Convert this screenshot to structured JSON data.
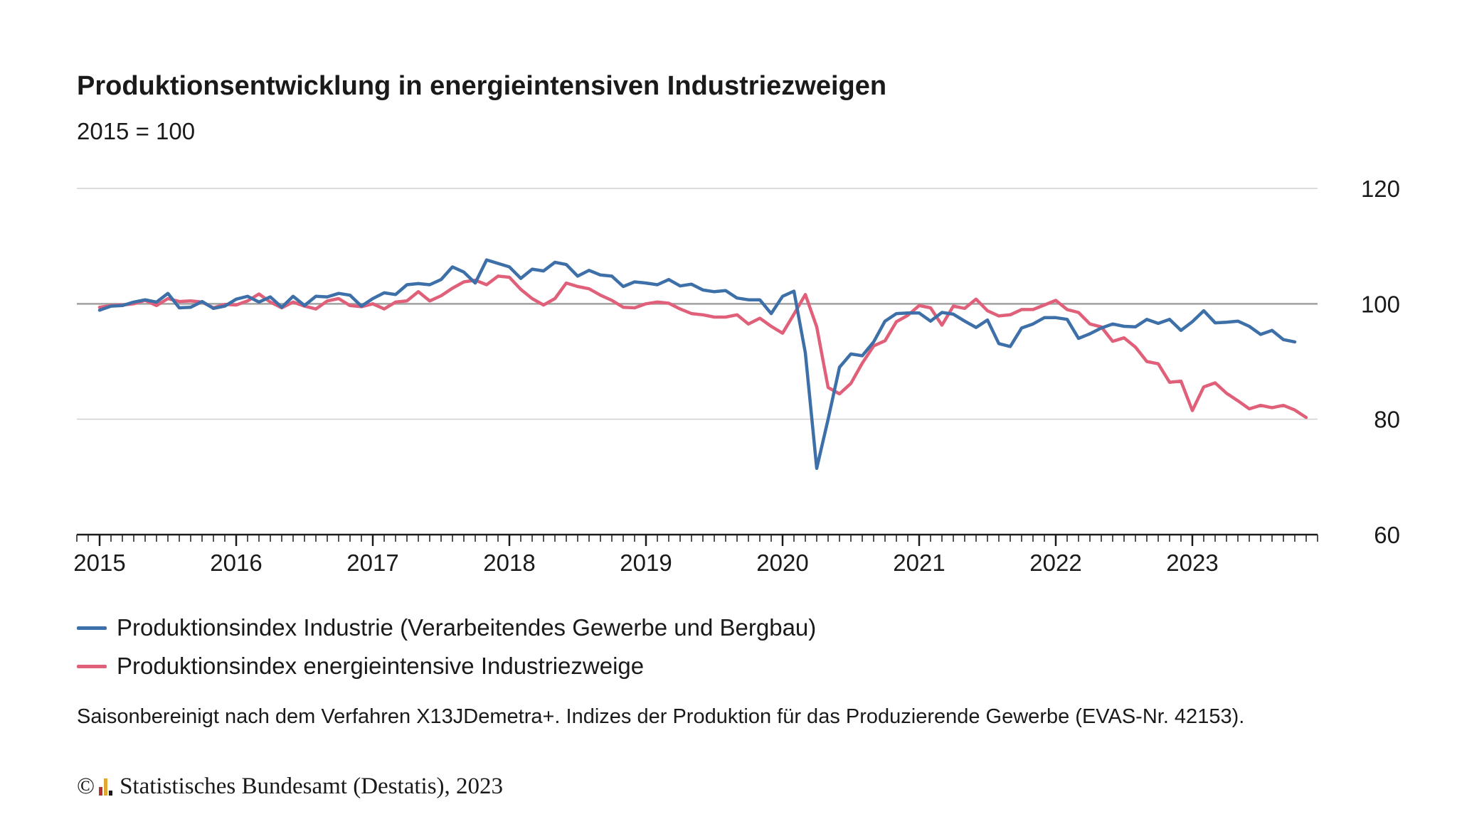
{
  "title": "Produktionsentwicklung in energieintensiven Industriezweigen",
  "subtitle": "2015 = 100",
  "legend": {
    "industry": "Produktionsindex Industrie (Verarbeitendes Gewerbe und Bergbau)",
    "energy": "Produktionsindex energieintensive Industriezweige"
  },
  "note": "Saisonbereinigt nach dem Verfahren X13JDemetra+. Indizes der Produktion für das Produzierende Gewerbe (EVAS-Nr. 42153).",
  "footer": {
    "copyright": "©",
    "source": "Statistisches Bundesamt (Destatis), 2023",
    "logo_colors": [
      "#b5312c",
      "#e0a830",
      "#1a1a1a"
    ]
  },
  "colors": {
    "industry": "#3d6fa8",
    "energy": "#e0607a",
    "grid": "#d0d0d0",
    "baseline": "#a0a0a0",
    "axis": "#1a1a1a"
  },
  "chart_data": {
    "type": "line",
    "title": "Produktionsentwicklung in energieintensiven Industriezweigen",
    "subtitle": "2015 = 100",
    "x_start": "2015-01",
    "frequency": "monthly",
    "x_tick_labels": [
      "2015",
      "2016",
      "2017",
      "2018",
      "2019",
      "2020",
      "2021",
      "2022",
      "2023"
    ],
    "y_tick_labels": [
      "120",
      "100",
      "80",
      "60"
    ],
    "ylim": [
      60,
      120
    ],
    "yticks": [
      60,
      80,
      100,
      120
    ],
    "y_axis_position": "right",
    "reference_line": 100,
    "series": [
      {
        "key": "industry",
        "name": "Produktionsindex Industrie (Verarbeitendes Gewerbe und Bergbau)",
        "values": [
          98.9,
          99.6,
          99.7,
          100.3,
          100.7,
          100.3,
          101.8,
          99.3,
          99.4,
          100.4,
          99.2,
          99.6,
          100.8,
          101.3,
          100.3,
          101.2,
          99.4,
          101.3,
          99.7,
          101.3,
          101.2,
          101.8,
          101.5,
          99.6,
          100.9,
          101.9,
          101.6,
          103.3,
          103.5,
          103.3,
          104.2,
          106.4,
          105.5,
          103.6,
          107.6,
          107.0,
          106.4,
          104.4,
          106.0,
          105.7,
          107.2,
          106.8,
          104.8,
          105.8,
          105.0,
          104.8,
          103.0,
          103.8,
          103.6,
          103.3,
          104.2,
          103.1,
          103.4,
          102.4,
          102.1,
          102.3,
          101.0,
          100.7,
          100.7,
          98.3,
          101.3,
          102.2,
          91.5,
          71.5,
          80.0,
          89.0,
          91.3,
          91.0,
          93.4,
          97.0,
          98.3,
          98.4,
          98.4,
          97.0,
          98.5,
          98.2,
          97.0,
          95.9,
          97.2,
          93.1,
          92.6,
          95.8,
          96.5,
          97.6,
          97.6,
          97.3,
          94.0,
          94.8,
          95.8,
          96.5,
          96.1,
          96.0,
          97.3,
          96.6,
          97.3,
          95.4,
          96.9,
          98.8,
          96.7,
          96.8,
          97.0,
          96.1,
          94.7,
          95.4,
          93.8,
          93.4
        ]
      },
      {
        "key": "energy",
        "name": "Produktionsindex energieintensive Industriezweige",
        "values": [
          99.4,
          99.7,
          99.8,
          100.0,
          100.6,
          99.7,
          100.9,
          100.4,
          100.5,
          100.3,
          99.3,
          99.9,
          99.8,
          100.5,
          101.7,
          100.3,
          99.3,
          100.3,
          99.6,
          99.1,
          100.5,
          100.9,
          99.7,
          99.5,
          100.0,
          99.1,
          100.3,
          100.5,
          102.1,
          100.5,
          101.4,
          102.7,
          103.8,
          104.1,
          103.3,
          104.8,
          104.6,
          102.5,
          100.9,
          99.8,
          100.9,
          103.6,
          103.0,
          102.6,
          101.5,
          100.6,
          99.4,
          99.3,
          100.0,
          100.3,
          100.1,
          99.1,
          98.3,
          98.1,
          97.7,
          97.7,
          98.1,
          96.5,
          97.5,
          96.1,
          94.9,
          98.2,
          101.6,
          96.0,
          85.5,
          84.4,
          86.2,
          89.7,
          92.7,
          93.6,
          96.9,
          98.0,
          99.7,
          99.3,
          96.3,
          99.6,
          99.2,
          100.8,
          98.8,
          97.9,
          98.1,
          99.0,
          99.0,
          99.8,
          100.6,
          99.0,
          98.5,
          96.5,
          96.0,
          93.5,
          94.1,
          92.5,
          90.0,
          89.6,
          86.4,
          86.6,
          81.5,
          85.6,
          86.3,
          84.5,
          83.2,
          81.8,
          82.4,
          82.0,
          82.4,
          81.6,
          80.3
        ]
      }
    ]
  }
}
